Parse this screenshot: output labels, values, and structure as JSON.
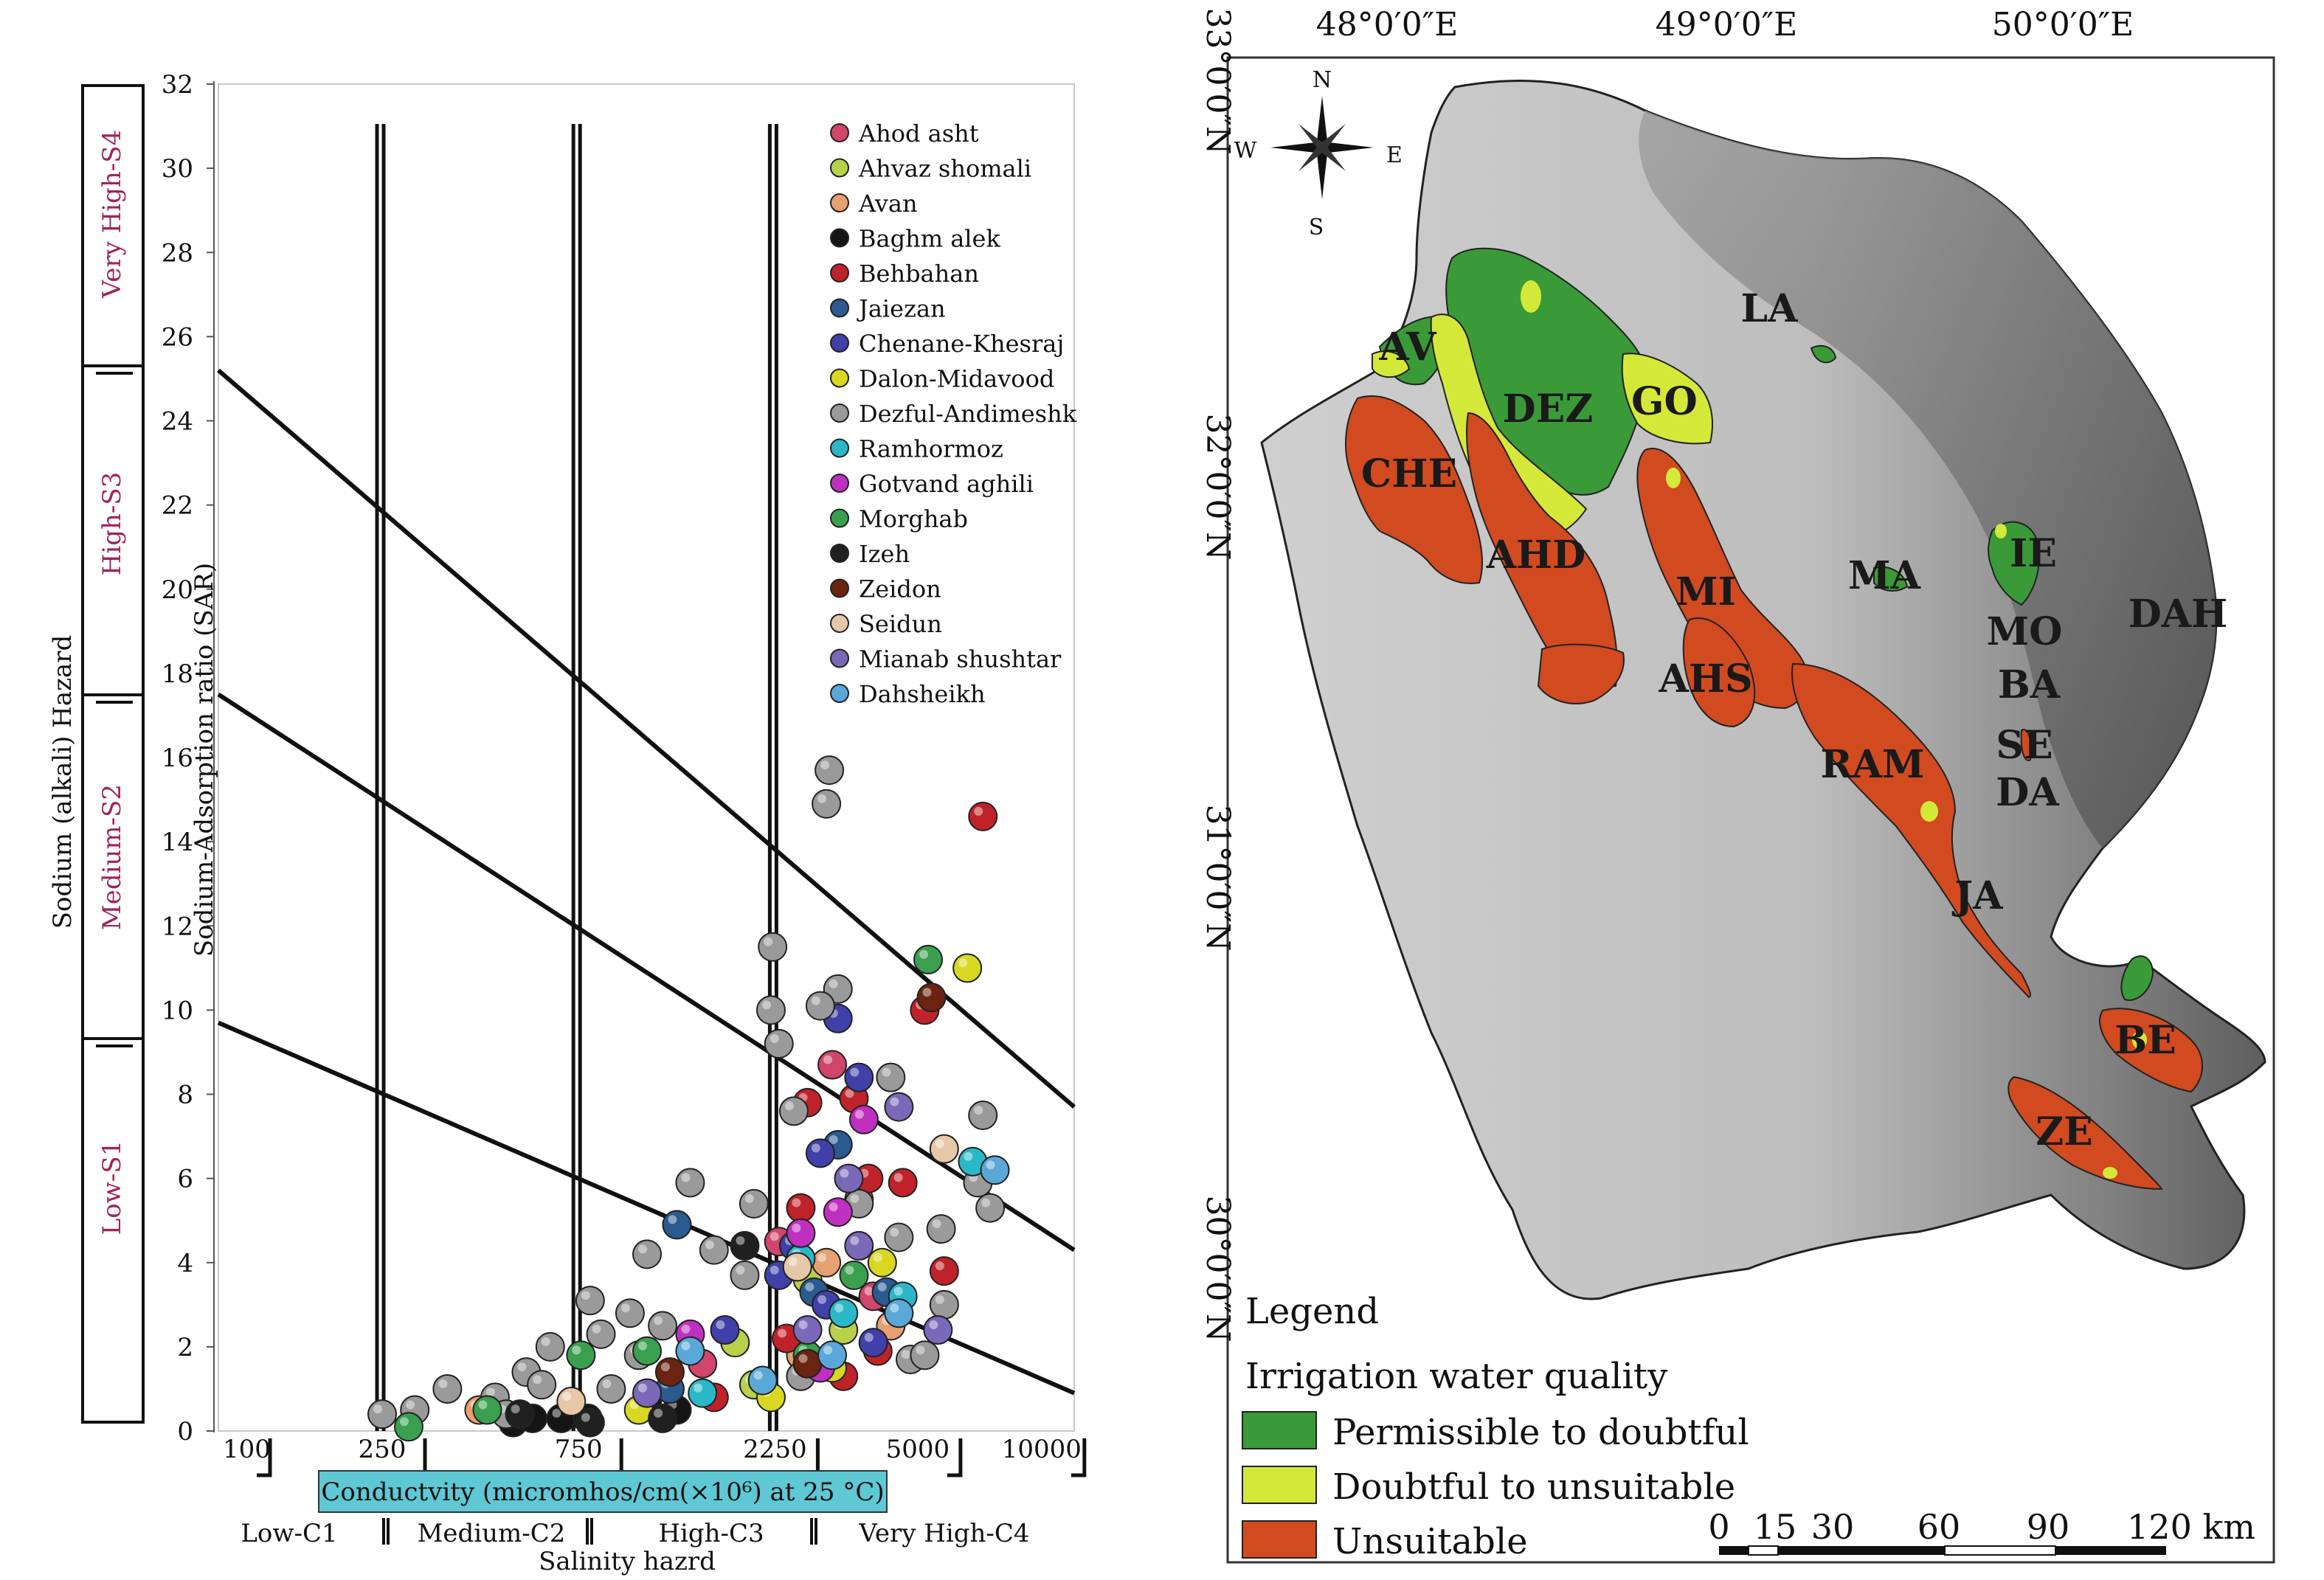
{
  "chart_data": [
    {
      "type": "scatter",
      "title": "",
      "xlabel": "Conductvity (micromhos/cm(×10⁶) at 25 °C)",
      "ylabel": "Sodium-Adsorption ratio (SAR)",
      "x_scale": "log",
      "xlim": [
        100,
        12000
      ],
      "ylim": [
        0,
        32
      ],
      "x_ticks": [
        "100",
        "250",
        "750",
        "2250",
        "5000",
        "10000"
      ],
      "y_ticks": [
        "0",
        "2",
        "4",
        "6",
        "8",
        "10",
        "12",
        "14",
        "16",
        "18",
        "20",
        "22",
        "24",
        "26",
        "28",
        "30",
        "32"
      ],
      "salinity_axis_title": "Salinity hazrd",
      "salinity_classes": [
        "Low-C1",
        "Medium-C2",
        "High-C3",
        "Very High-C4"
      ],
      "sodium_axis_title": "Sodium (alkali) Hazard",
      "sodium_classes": [
        "Low-S1",
        "Medium-S2",
        "High-S3",
        "Very High-S4"
      ],
      "class_boundaries_x": [
        250,
        750,
        2250
      ],
      "sodium_boundaries": [
        {
          "x": [
            100,
            12000
          ],
          "y": [
            9.7,
            0.9
          ]
        },
        {
          "x": [
            100,
            12000
          ],
          "y": [
            17.5,
            4.3
          ]
        },
        {
          "x": [
            100,
            12000
          ],
          "y": [
            25.2,
            7.7
          ]
        }
      ],
      "legend_position": "top-right",
      "series": [
        {
          "name": "Ahod asht",
          "color": "#d0466a",
          "points": [
            [
              2300,
              4.5
            ],
            [
              3100,
              8.7
            ],
            [
              3600,
              5.5
            ],
            [
              1500,
              1.6
            ],
            [
              3900,
              3.2
            ]
          ]
        },
        {
          "name": "Ahvaz shomali",
          "color": "#b8d04a",
          "points": [
            [
              2700,
              3.6
            ],
            [
              1800,
              2.1
            ],
            [
              3300,
              2.4
            ],
            [
              2000,
              1.1
            ]
          ]
        },
        {
          "name": "Avan",
          "color": "#e8a070",
          "points": [
            [
              3000,
              4.0
            ],
            [
              2600,
              1.8
            ],
            [
              4300,
              2.5
            ],
            [
              430,
              0.5
            ]
          ]
        },
        {
          "name": "Baghm alek",
          "color": "#151515",
          "points": [
            [
              720,
              0.4
            ],
            [
              680,
              0.3
            ],
            [
              1100,
              0.7
            ],
            [
              1300,
              0.5
            ],
            [
              520,
              0.2
            ],
            [
              790,
              0.3
            ],
            [
              580,
              0.3
            ]
          ]
        },
        {
          "name": "Behbahan",
          "color": "#c0222a",
          "points": [
            [
              7200,
              14.6
            ],
            [
              5200,
              10.0
            ],
            [
              2700,
              7.8
            ],
            [
              3800,
              6.0
            ],
            [
              4600,
              5.9
            ],
            [
              5800,
              3.8
            ],
            [
              2400,
              2.2
            ],
            [
              1600,
              0.8
            ],
            [
              3300,
              1.3
            ],
            [
              4000,
              1.9
            ],
            [
              2600,
              5.3
            ],
            [
              3500,
              7.9
            ]
          ]
        },
        {
          "name": "Jaiezan",
          "color": "#2a5a90",
          "points": [
            [
              3200,
              6.8
            ],
            [
              2800,
              3.3
            ],
            [
              1300,
              4.9
            ],
            [
              4200,
              3.3
            ],
            [
              1250,
              1.0
            ]
          ]
        },
        {
          "name": "Chenane-Khesraj",
          "color": "#4040a8",
          "points": [
            [
              3200,
              9.8
            ],
            [
              3600,
              8.4
            ],
            [
              2900,
              6.6
            ],
            [
              3000,
              3.0
            ],
            [
              2500,
              4.4
            ],
            [
              3900,
              2.1
            ],
            [
              1700,
              2.4
            ],
            [
              2300,
              3.7
            ]
          ]
        },
        {
          "name": "Dalon-Midavood",
          "color": "#d8d822",
          "points": [
            [
              6600,
              11.0
            ],
            [
              4100,
              4.0
            ],
            [
              3100,
              1.5
            ],
            [
              2200,
              0.8
            ],
            [
              1050,
              0.5
            ]
          ]
        },
        {
          "name": "Dezful-Andimeshk",
          "color": "#9a9a9a",
          "points": [
            [
              3050,
              15.7
            ],
            [
              3000,
              14.9
            ],
            [
              2220,
              11.5
            ],
            [
              3200,
              10.5
            ],
            [
              2200,
              10.0
            ],
            [
              2900,
              10.1
            ],
            [
              2300,
              9.2
            ],
            [
              4300,
              8.4
            ],
            [
              2500,
              7.6
            ],
            [
              7200,
              7.5
            ],
            [
              7000,
              5.9
            ],
            [
              4500,
              4.6
            ],
            [
              5700,
              4.8
            ],
            [
              1400,
              5.9
            ],
            [
              2000,
              5.4
            ],
            [
              1100,
              4.2
            ],
            [
              800,
              3.1
            ],
            [
              640,
              2.0
            ],
            [
              560,
              1.4
            ],
            [
              470,
              0.8
            ],
            [
              360,
              1.0
            ],
            [
              610,
              1.1
            ],
            [
              900,
              1.0
            ],
            [
              1200,
              2.5
            ],
            [
              300,
              0.5
            ],
            [
              250,
              0.4
            ],
            [
              4800,
              1.7
            ],
            [
              5200,
              1.8
            ],
            [
              3600,
              5.4
            ],
            [
              1600,
              4.3
            ],
            [
              1000,
              2.8
            ],
            [
              2600,
              1.3
            ],
            [
              5800,
              3.0
            ],
            [
              500,
              0.4
            ],
            [
              7500,
              5.3
            ],
            [
              1900,
              3.7
            ],
            [
              850,
              2.3
            ],
            [
              1050,
              1.8
            ]
          ]
        },
        {
          "name": "Ramhormoz",
          "color": "#2ab8c8",
          "points": [
            [
              6800,
              6.4
            ],
            [
              2600,
              4.1
            ],
            [
              3300,
              2.8
            ],
            [
              4600,
              3.2
            ],
            [
              1500,
              0.9
            ]
          ]
        },
        {
          "name": "Gotvand aghili",
          "color": "#c030c0",
          "points": [
            [
              2600,
              4.7
            ],
            [
              3700,
              7.4
            ],
            [
              3200,
              5.2
            ],
            [
              1400,
              2.3
            ],
            [
              2900,
              1.5
            ]
          ]
        },
        {
          "name": "Morghab",
          "color": "#3aa050",
          "points": [
            [
              5300,
              11.2
            ],
            [
              760,
              1.8
            ],
            [
              290,
              0.1
            ],
            [
              450,
              0.5
            ],
            [
              1100,
              1.9
            ],
            [
              3500,
              3.7
            ],
            [
              2700,
              1.8
            ]
          ]
        },
        {
          "name": "Izeh",
          "color": "#202020",
          "points": [
            [
              1200,
              0.3
            ],
            [
              1900,
              4.4
            ],
            [
              540,
              0.4
            ],
            [
              800,
              0.2
            ]
          ]
        },
        {
          "name": "Zeidon",
          "color": "#6a2410",
          "points": [
            [
              5400,
              10.3
            ],
            [
              2700,
              1.6
            ],
            [
              1250,
              1.4
            ]
          ]
        },
        {
          "name": "Seidun",
          "color": "#e6c8a8",
          "points": [
            [
              5800,
              6.7
            ],
            [
              2550,
              3.9
            ],
            [
              720,
              0.7
            ]
          ]
        },
        {
          "name": "Mianab shushtar",
          "color": "#7a68b8",
          "points": [
            [
              4500,
              7.7
            ],
            [
              3600,
              4.4
            ],
            [
              3400,
              6.0
            ],
            [
              5600,
              2.4
            ],
            [
              1100,
              0.9
            ],
            [
              2700,
              2.4
            ]
          ]
        },
        {
          "name": "Dahsheikh",
          "color": "#5aa8d8",
          "points": [
            [
              7700,
              6.2
            ],
            [
              4500,
              2.8
            ],
            [
              1400,
              1.9
            ],
            [
              3100,
              1.8
            ],
            [
              2100,
              1.2
            ]
          ]
        }
      ]
    }
  ],
  "map": {
    "lon_labels": [
      "48°0′0″E",
      "49°0′0″E",
      "50°0′0″E"
    ],
    "lat_labels": [
      "33°0′0″N",
      "32°0′0″N",
      "31°0′0″N",
      "30°0′0″N"
    ],
    "compass": {
      "n": "N",
      "s": "S",
      "e": "E",
      "w": "W"
    },
    "zone_labels": [
      "LA",
      "AV",
      "DEZ",
      "GO",
      "CHE",
      "AHD",
      "MI",
      "AHS",
      "MA",
      "IE",
      "MO",
      "DAH",
      "BA",
      "SE",
      "DA",
      "RAM",
      "JA",
      "BE",
      "ZE"
    ],
    "legend_title": "Legend",
    "legend_subtitle": "Irrigation water quality",
    "legend_items": [
      {
        "label": "Permissible to doubtful",
        "color": "#3a9a38"
      },
      {
        "label": "Doubtful to unsuitable",
        "color": "#d4e83a"
      },
      {
        "label": "Unsuitable",
        "color": "#d24a20"
      }
    ],
    "scale_labels": [
      "0",
      "15",
      "30",
      "60",
      "90",
      "120 km"
    ]
  }
}
